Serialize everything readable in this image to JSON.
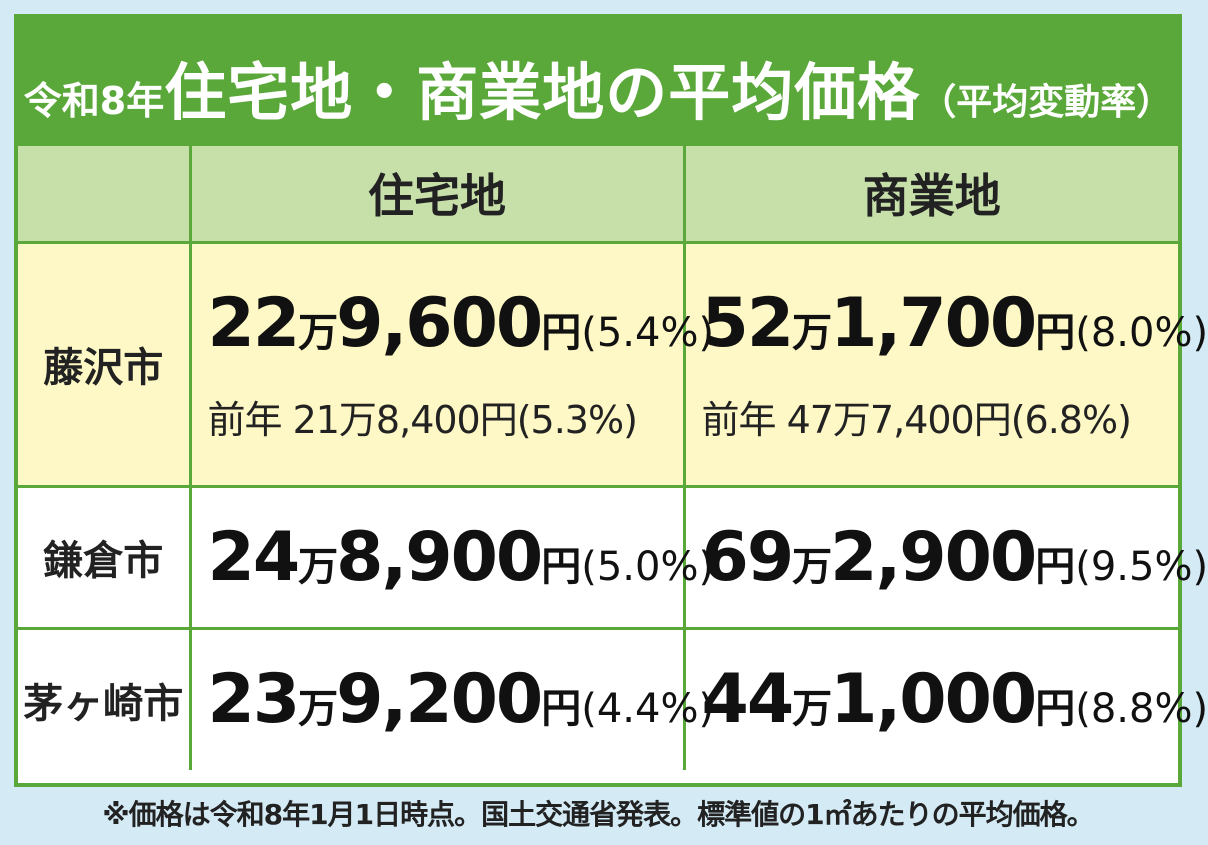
{
  "title": {
    "prefix": "令和8年",
    "main": "住宅地・商業地の平均価格",
    "suffix": "（平均変動率）"
  },
  "table": {
    "headers": [
      "",
      "住宅地",
      "商業地"
    ],
    "rows": [
      {
        "city": "藤沢市",
        "residential": {
          "man": "22",
          "man_unit": "万",
          "rest": "9,600",
          "yen": "円",
          "rate": "(5.4%)",
          "previous": "前年 21万8,400円(5.3%)"
        },
        "commercial": {
          "man": "52",
          "man_unit": "万",
          "rest": "1,700",
          "yen": "円",
          "rate": "(8.0%)",
          "previous": "前年 47万7,400円(6.8%)"
        }
      },
      {
        "city": "鎌倉市",
        "residential": {
          "man": "24",
          "man_unit": "万",
          "rest": "8,900",
          "yen": "円",
          "rate": "(5.0%)"
        },
        "commercial": {
          "man": "69",
          "man_unit": "万",
          "rest": "2,900",
          "yen": "円",
          "rate": "(9.5%)"
        }
      },
      {
        "city": "茅ヶ崎市",
        "residential": {
          "man": "23",
          "man_unit": "万",
          "rest": "9,200",
          "yen": "円",
          "rate": "(4.4%)"
        },
        "commercial": {
          "man": "44",
          "man_unit": "万",
          "rest": "1,000",
          "yen": "円",
          "rate": "(8.8%)"
        }
      }
    ]
  },
  "footnote": "※価格は令和8年1月1日時点。国土交通省発表。標準値の1㎡あたりの平均価格。",
  "colors": {
    "green": "#5aa83a",
    "header_bg": "#c7e0aa",
    "highlight_bg": "#fdf8c5",
    "page_bg": "#d4ebf6"
  }
}
